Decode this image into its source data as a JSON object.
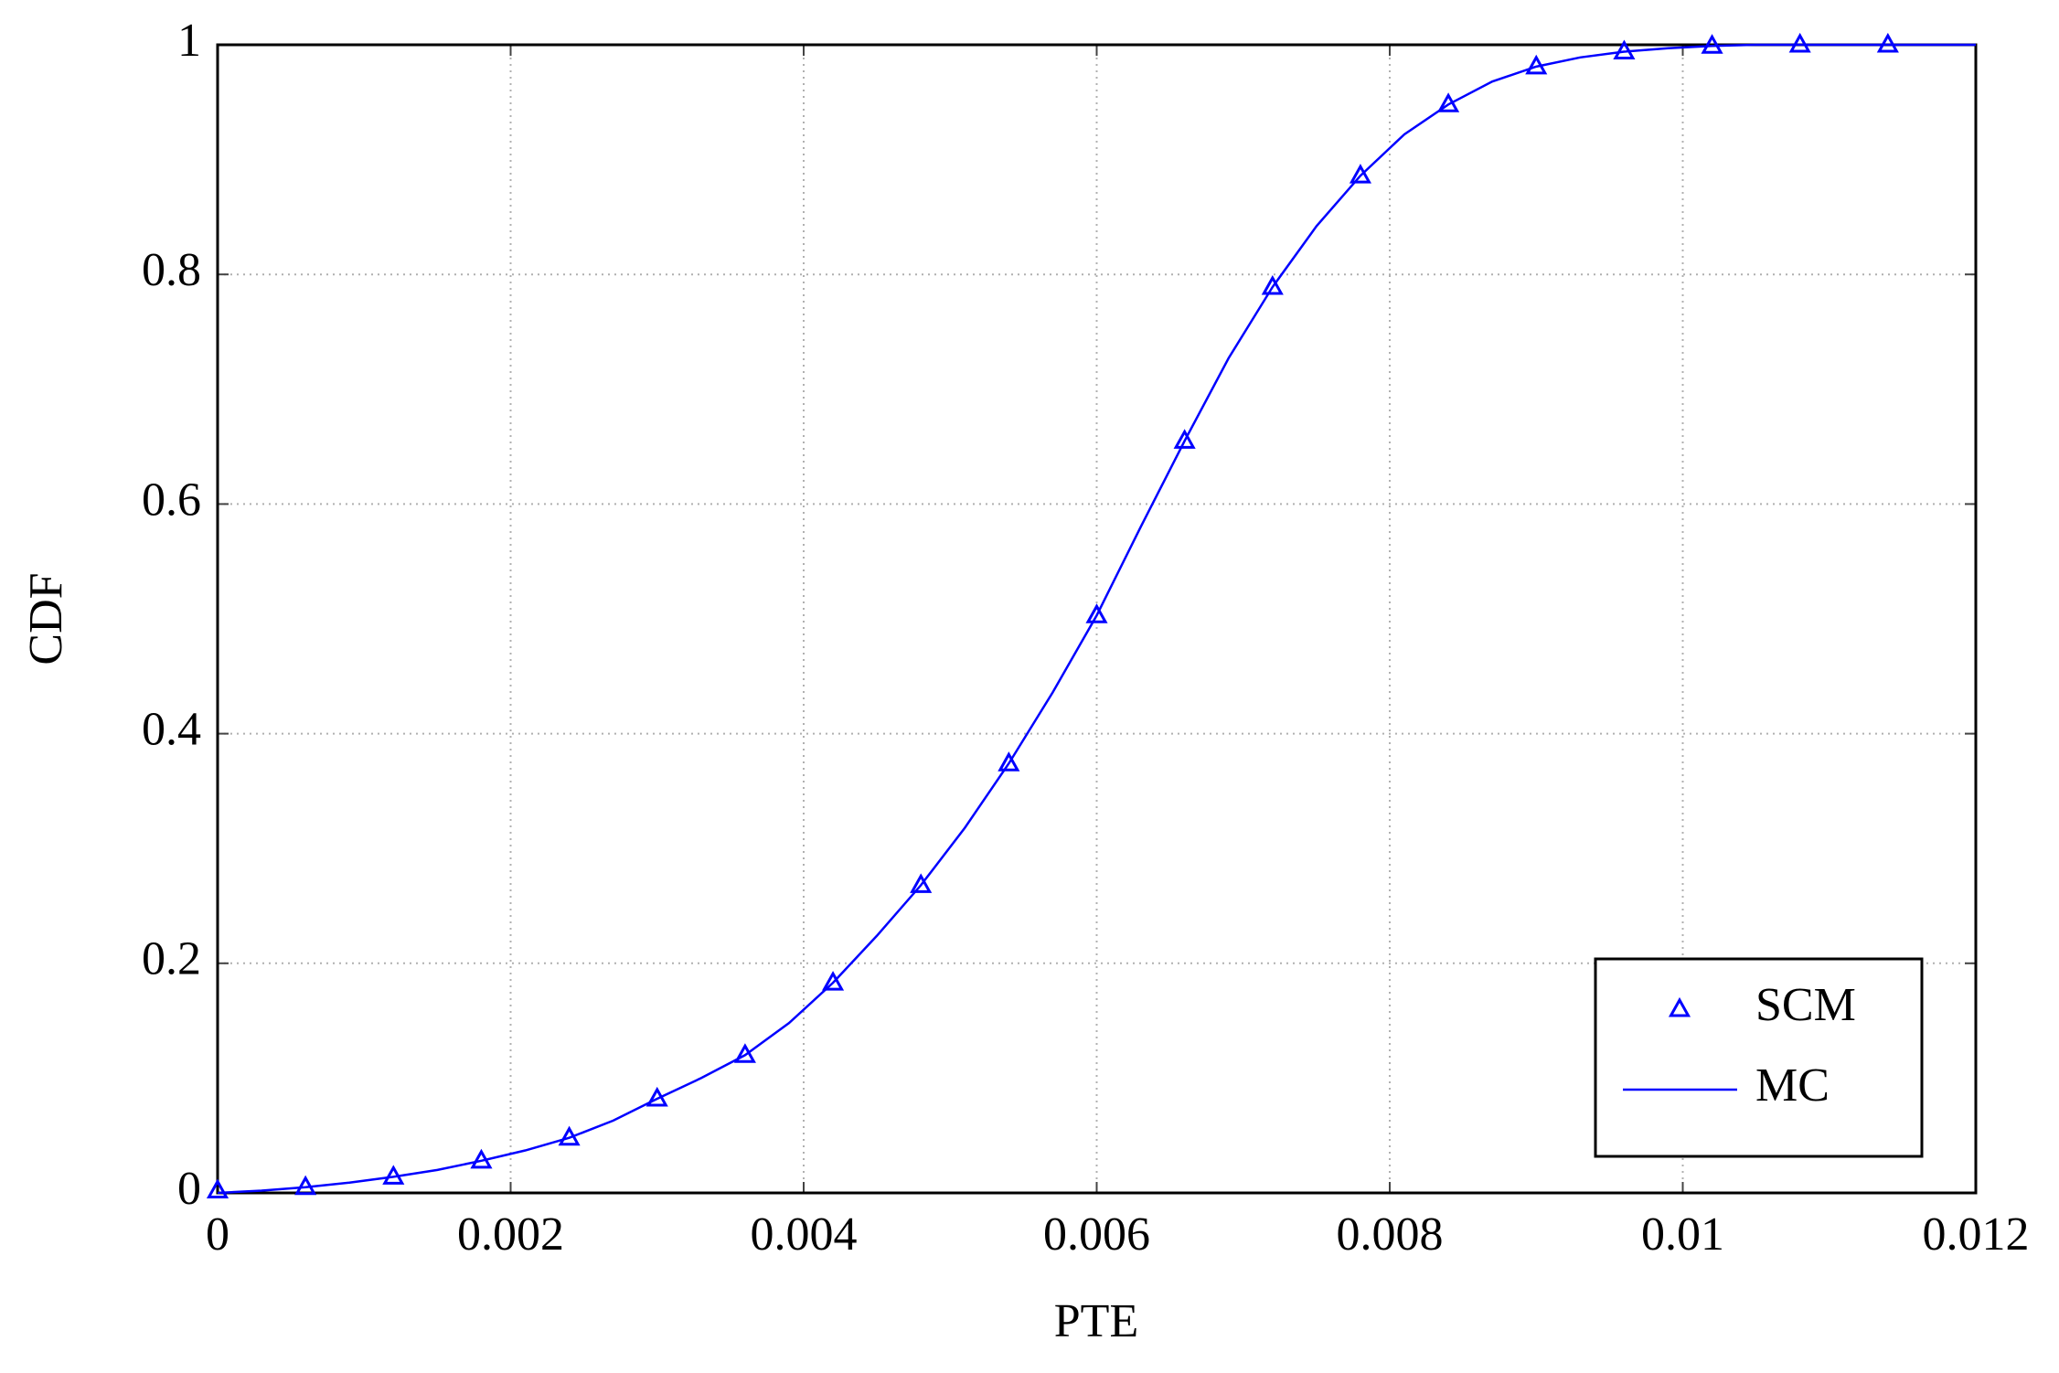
{
  "chart_data": {
    "type": "line",
    "xlabel": "PTE",
    "ylabel": "CDF",
    "xlim": [
      0,
      0.012
    ],
    "ylim": [
      0,
      1
    ],
    "xticks": [
      0,
      0.002,
      0.004,
      0.006,
      0.008,
      0.01,
      0.012
    ],
    "yticks": [
      0,
      0.2,
      0.4,
      0.6,
      0.8,
      1
    ],
    "grid": true,
    "legend": "south east",
    "series": [
      {
        "name": "SCM",
        "color": "#0000ff",
        "marker": "triangle",
        "x": [
          0,
          0.0006,
          0.0012,
          0.0018,
          0.0024,
          0.003,
          0.0036,
          0.0042,
          0.0048,
          0.0054,
          0.006,
          0.0066,
          0.0072,
          0.0078,
          0.0084,
          0.009,
          0.0096,
          0.0102,
          0.0108,
          0.0114
        ],
        "values": [
          0.002,
          0.005,
          0.014,
          0.028,
          0.048,
          0.082,
          0.12,
          0.183,
          0.268,
          0.374,
          0.503,
          0.655,
          0.789,
          0.886,
          0.948,
          0.981,
          0.994,
          0.999,
          1,
          1
        ]
      },
      {
        "name": "MC",
        "color": "#0000ff",
        "marker": "none",
        "x": [
          0,
          0.0003,
          0.0006,
          0.0009,
          0.0012,
          0.0015,
          0.0018,
          0.0021,
          0.0024,
          0.0027,
          0.003,
          0.0033,
          0.0036,
          0.0039,
          0.0042,
          0.0045,
          0.0048,
          0.0051,
          0.0054,
          0.0057,
          0.006,
          0.0063,
          0.0066,
          0.0069,
          0.0072,
          0.0075,
          0.0078,
          0.0081,
          0.0084,
          0.0087,
          0.009,
          0.0093,
          0.0096,
          0.0099,
          0.0102,
          0.0105,
          0.012
        ],
        "values": [
          0,
          0.002,
          0.005,
          0.009,
          0.014,
          0.02,
          0.028,
          0.037,
          0.048,
          0.063,
          0.082,
          0.1,
          0.12,
          0.148,
          0.183,
          0.224,
          0.268,
          0.318,
          0.374,
          0.436,
          0.503,
          0.58,
          0.655,
          0.727,
          0.789,
          0.842,
          0.886,
          0.922,
          0.948,
          0.968,
          0.981,
          0.989,
          0.994,
          0.997,
          0.999,
          1,
          1
        ]
      }
    ]
  }
}
